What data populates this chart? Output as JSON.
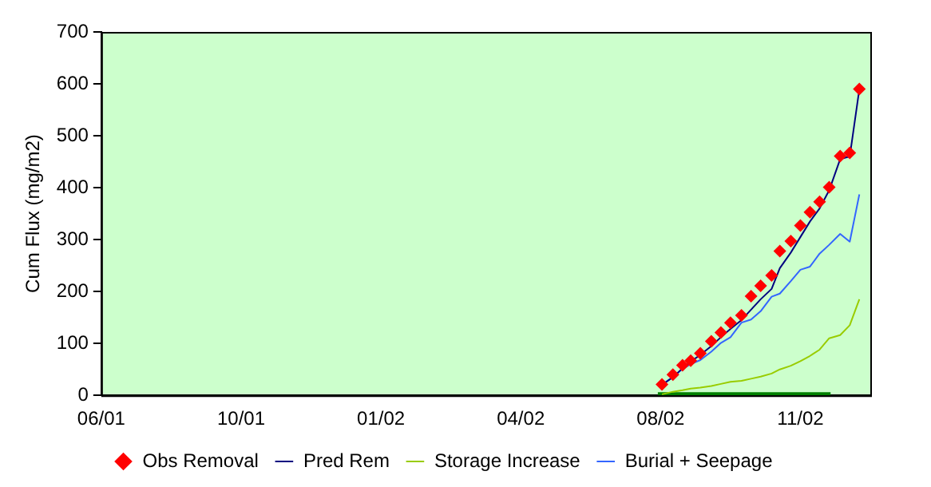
{
  "chart_data": {
    "type": "line",
    "ylabel": "Cum Flux (mg/m2)",
    "ylim": [
      0,
      700
    ],
    "yticks": [
      0,
      100,
      200,
      300,
      400,
      500,
      600,
      700
    ],
    "xlim": [
      "2001-06-25",
      "2003-01-07"
    ],
    "xticks": [
      {
        "value": "2001-06-25",
        "label": "06/01"
      },
      {
        "value": "2001-10-05",
        "label": "10/01"
      },
      {
        "value": "2002-01-15",
        "label": "01/02"
      },
      {
        "value": "2002-04-27",
        "label": "04/02"
      },
      {
        "value": "2002-08-07",
        "label": "08/02"
      },
      {
        "value": "2002-11-17",
        "label": "11/02"
      }
    ],
    "x": [
      "2002-08-08",
      "2002-08-16",
      "2002-08-23",
      "2002-08-29",
      "2002-09-05",
      "2002-09-13",
      "2002-09-20",
      "2002-09-27",
      "2002-10-05",
      "2002-10-12",
      "2002-10-19",
      "2002-10-27",
      "2002-11-02",
      "2002-11-10",
      "2002-11-17",
      "2002-11-24",
      "2002-12-01",
      "2002-12-08",
      "2002-12-16",
      "2002-12-23",
      "2002-12-30"
    ],
    "grid": false,
    "legend": "bottom",
    "marker": "none",
    "line_style": "solid",
    "series": [
      {
        "name": "Obs Removal",
        "type": "scatter",
        "marker": "diamond",
        "color": "#ff0000",
        "values": [
          21,
          40,
          58,
          67,
          81,
          104,
          121,
          140,
          154,
          191,
          211,
          231,
          278,
          297,
          327,
          353,
          373,
          401,
          461,
          467,
          590
        ]
      },
      {
        "name": "Pred Rem",
        "color": "#000080",
        "values": [
          20,
          35,
          52,
          65,
          78,
          95,
          112,
          128,
          145,
          165,
          185,
          205,
          245,
          275,
          305,
          335,
          360,
          395,
          455,
          460,
          590
        ]
      },
      {
        "name": "Storage Increase",
        "color": "#99cc00",
        "values": [
          2,
          7,
          10,
          13,
          15,
          18,
          22,
          26,
          28,
          32,
          36,
          42,
          50,
          57,
          66,
          76,
          88,
          110,
          116,
          135,
          185
        ]
      },
      {
        "name": "Burial + Seepage",
        "color": "#3366ff",
        "values": [
          21,
          35,
          51,
          60,
          68,
          84,
          101,
          112,
          140,
          146,
          162,
          190,
          196,
          220,
          242,
          248,
          273,
          290,
          311,
          296,
          387
        ]
      },
      {
        "color": "#008000",
        "x": [
          "2002-08-05",
          "2002-12-09"
        ],
        "values": [
          0,
          0
        ]
      }
    ]
  }
}
